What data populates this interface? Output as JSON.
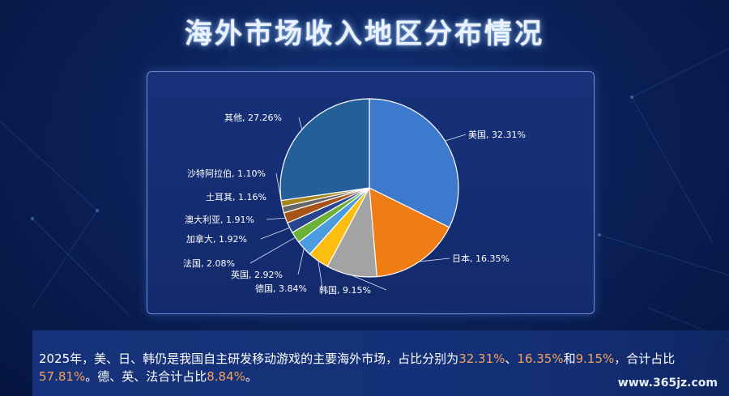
{
  "title": "海外市场收入地区分布情况",
  "chart_data": {
    "type": "pie",
    "slices": [
      {
        "label": "美国, 32.31%",
        "value": 32.31,
        "color": "#3d79cc"
      },
      {
        "label": "日本, 16.35%",
        "value": 16.35,
        "color": "#ef7d13"
      },
      {
        "label": "韩国, 9.15%",
        "value": 9.15,
        "color": "#a3a3a3"
      },
      {
        "label": "德国, 3.84%",
        "value": 3.84,
        "color": "#fdbe10"
      },
      {
        "label": "英国, 2.92%",
        "value": 2.92,
        "color": "#4a9be0"
      },
      {
        "label": "法国, 2.08%",
        "value": 2.08,
        "color": "#6cb239"
      },
      {
        "label": "加拿大, 1.92%",
        "value": 1.92,
        "color": "#27448f"
      },
      {
        "label": "澳大利亚, 1.91%",
        "value": 1.91,
        "color": "#a6541a"
      },
      {
        "label": "土耳其, 1.16%",
        "value": 1.16,
        "color": "#666666"
      },
      {
        "label": "沙特阿拉伯, 1.10%",
        "value": 1.1,
        "color": "#a6851a"
      },
      {
        "label": "其他, 27.26%",
        "value": 27.26,
        "color": "#245f9a"
      }
    ]
  },
  "footer": {
    "segments": [
      {
        "text": "2025年，美、日、韩仍是我国自主研发移动游戏的主要海外市场，占比分别为",
        "highlight": false
      },
      {
        "text": "32.31%",
        "highlight": true
      },
      {
        "text": "、",
        "highlight": false
      },
      {
        "text": "16.35%",
        "highlight": true
      },
      {
        "text": "和",
        "highlight": false
      },
      {
        "text": "9.15%",
        "highlight": true
      },
      {
        "text": "，合计占比",
        "highlight": false
      },
      {
        "text": "57.81%",
        "highlight": true
      },
      {
        "text": "。德、英、法合计占比",
        "highlight": false
      },
      {
        "text": "8.84%",
        "highlight": true
      },
      {
        "text": "。",
        "highlight": false
      }
    ]
  },
  "watermark": "www.365jz.com"
}
